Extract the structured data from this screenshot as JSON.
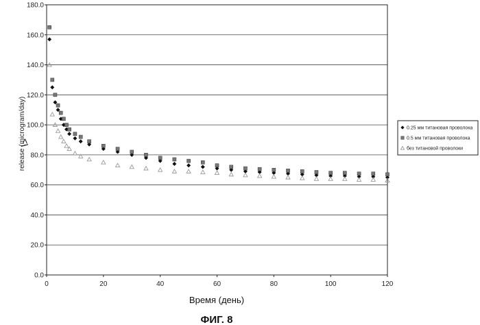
{
  "chart_data": {
    "type": "scatter",
    "xlabel": "Время (день)",
    "ylabel": "release (microgram/day)",
    "side_mark": "\\>",
    "caption": "ФИГ. 8",
    "xlim": [
      0,
      120
    ],
    "ylim": [
      0,
      180
    ],
    "x_ticks": [
      0,
      20,
      40,
      60,
      80,
      100,
      120
    ],
    "y_ticks": [
      0,
      20,
      40,
      60,
      80,
      100,
      120,
      140,
      160,
      180
    ],
    "x_tick_labels": [
      "0",
      "20",
      "40",
      "60",
      "80",
      "100",
      "120"
    ],
    "y_tick_labels": [
      "0.0",
      "20.0",
      "40.0",
      "60.0",
      "80.0",
      "100.0",
      "120.0",
      "140.0",
      "160.0",
      "180.0"
    ],
    "grid": "horizontal",
    "legend_position": "right",
    "series": [
      {
        "name": "0.25 мм титановая проволока",
        "marker": "diamond",
        "color": "#111111",
        "x": [
          1,
          2,
          3,
          4,
          5,
          6,
          7,
          8,
          10,
          12,
          15,
          20,
          25,
          30,
          35,
          40,
          45,
          50,
          55,
          60,
          65,
          70,
          75,
          80,
          85,
          90,
          95,
          100,
          105,
          110,
          115,
          120
        ],
        "y": [
          157,
          125,
          115,
          110,
          104,
          100,
          97,
          94,
          91,
          89,
          87,
          84,
          82,
          80,
          78,
          76,
          74,
          73,
          72,
          71,
          70,
          69,
          68.5,
          68,
          67.5,
          67,
          66.5,
          66,
          66,
          65.5,
          65.5,
          65
        ]
      },
      {
        "name": "0.5 мм титановая проволока",
        "marker": "square",
        "color": "#777777",
        "x": [
          1,
          2,
          3,
          4,
          5,
          6,
          7,
          8,
          10,
          12,
          15,
          20,
          25,
          30,
          35,
          40,
          45,
          50,
          55,
          60,
          65,
          70,
          75,
          80,
          85,
          90,
          95,
          100,
          105,
          110,
          115,
          120
        ],
        "y": [
          165,
          130,
          120,
          113,
          108,
          104,
          100,
          97,
          94,
          92,
          89,
          86,
          84,
          82,
          80,
          78,
          77,
          76,
          75,
          73,
          72,
          71,
          70.5,
          70,
          69.5,
          69,
          68.5,
          68,
          68,
          67.5,
          67.5,
          67
        ]
      },
      {
        "name": "без титановой проволоки",
        "marker": "triangle",
        "color": "#999999",
        "x": [
          1,
          2,
          3,
          4,
          5,
          6,
          7,
          8,
          10,
          12,
          15,
          20,
          25,
          30,
          35,
          40,
          45,
          50,
          55,
          60,
          65,
          70,
          75,
          80,
          85,
          90,
          95,
          100,
          105,
          110,
          115,
          120
        ],
        "y": [
          140,
          107,
          100,
          96,
          92,
          89,
          86,
          84,
          81,
          79,
          77,
          75,
          73,
          72,
          71,
          70,
          69,
          69,
          68.5,
          68,
          67,
          66.5,
          66,
          65.5,
          65,
          64.5,
          64,
          64,
          64,
          63.5,
          63.5,
          63
        ]
      }
    ]
  }
}
